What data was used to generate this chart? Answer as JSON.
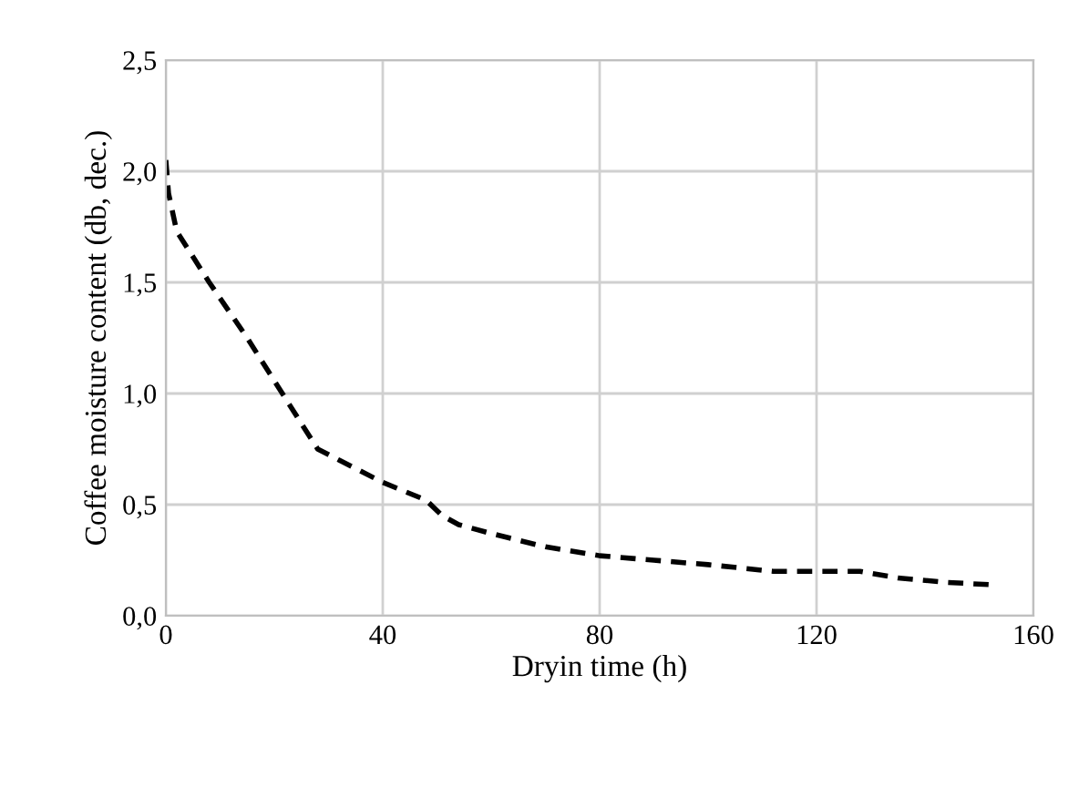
{
  "chart_data": {
    "type": "line",
    "xlabel": "Dryin time (h)",
    "ylabel": "Coffee moisture content (db, dec.)",
    "series": [
      {
        "color": "#000000",
        "line_style": "dashed",
        "marker": "none",
        "x": [
          0,
          0.5,
          2,
          8,
          15,
          22,
          28,
          32,
          40,
          48,
          51,
          54,
          60,
          70,
          80,
          90,
          100,
          112,
          120,
          128,
          135,
          144,
          152
        ],
        "values": [
          2.05,
          1.9,
          1.73,
          1.5,
          1.25,
          0.98,
          0.75,
          0.7,
          0.6,
          0.52,
          0.45,
          0.41,
          0.37,
          0.31,
          0.27,
          0.25,
          0.23,
          0.2,
          0.2,
          0.2,
          0.17,
          0.15,
          0.14
        ]
      }
    ],
    "xlim": [
      0,
      160
    ],
    "xticks": [
      0,
      40,
      80,
      120,
      160
    ],
    "ylim": [
      0,
      2.5
    ],
    "yticks": [
      {
        "value": 0,
        "label": "0,0"
      },
      {
        "value": 0.5,
        "label": "0,5"
      },
      {
        "value": 1,
        "label": "1,0"
      },
      {
        "value": 1.5,
        "label": "1,5"
      },
      {
        "value": 2,
        "label": "2,0"
      },
      {
        "value": 2.5,
        "label": "2,5"
      }
    ],
    "grid": true
  }
}
